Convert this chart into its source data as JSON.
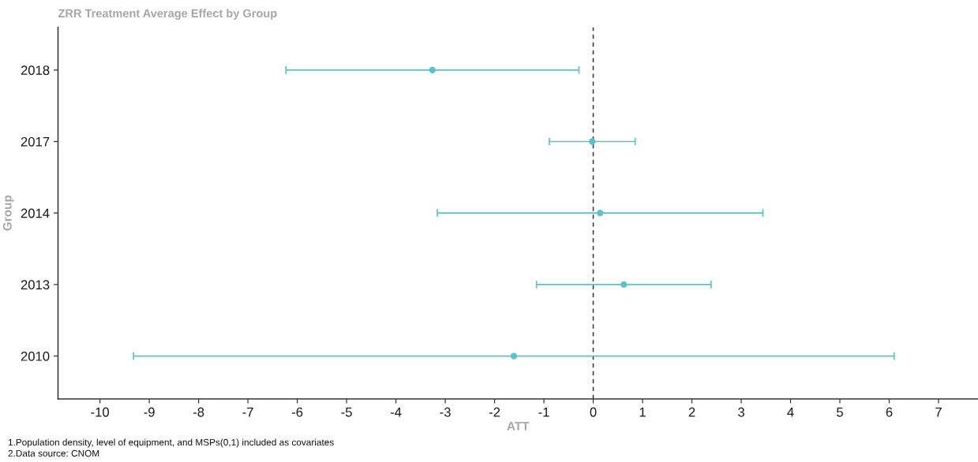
{
  "chart_data": {
    "type": "scatter",
    "orientation": "horizontal",
    "title": "ZRR Treatment Average Effect by Group",
    "xlabel": "ATT",
    "ylabel": "Group",
    "categories": [
      "2018",
      "2017",
      "2014",
      "2013",
      "2010"
    ],
    "values": [
      -3.26,
      -0.02,
      0.14,
      0.62,
      -1.61
    ],
    "errors": [
      2.97,
      0.87,
      3.3,
      1.77,
      7.71
    ],
    "color": "#5fc1c8",
    "marker": "circle",
    "xlim": [
      -10.85,
      7.8
    ],
    "xticks": [
      -10,
      -9,
      -8,
      -7,
      -6,
      -5,
      -4,
      -3,
      -2,
      -1,
      0,
      1,
      2,
      3,
      4,
      5,
      6,
      7
    ],
    "ref_lines": [
      {
        "axis": "x",
        "value": 0,
        "color": "#333333",
        "line_style": "dashed"
      }
    ],
    "annotations": [
      "1.Population density, level of equipment, and MSPs(0,1) included as covariates",
      "2.Data source: CNOM"
    ]
  }
}
